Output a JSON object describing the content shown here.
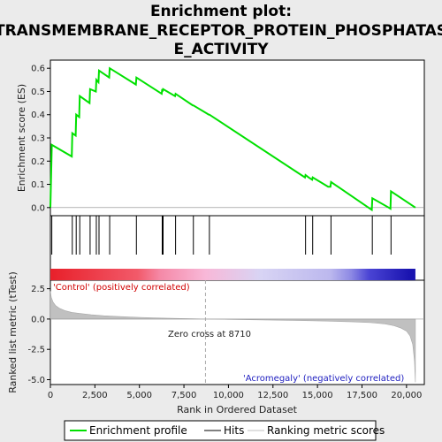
{
  "chart_data": {
    "type": "line",
    "title_lines": [
      "Enrichment plot:",
      "TRANSMEMBRANE_RECEPTOR_PROTEIN_PHOSPHATAS",
      "E_ACTIVITY"
    ],
    "es_ylabel": "Enrichment score (ES)",
    "metric_ylabel": "Ranked list metric (tTest)",
    "xlabel": "Rank in Ordered Dataset",
    "xlim": [
      0,
      21000
    ],
    "xticks": [
      0,
      2500,
      5000,
      7500,
      10000,
      12500,
      15000,
      17500,
      20000
    ],
    "xtick_labels": [
      "0",
      "2,500",
      "5,000",
      "7,500",
      "10,000",
      "12,500",
      "15,000",
      "17,500",
      "20,000"
    ],
    "es_ylim": [
      -0.035,
      0.635
    ],
    "es_yticks": [
      0.0,
      0.1,
      0.2,
      0.3,
      0.4,
      0.5,
      0.6
    ],
    "es_ytick_labels": [
      "0.0",
      "0.1",
      "0.2",
      "0.3",
      "0.4",
      "0.5",
      "0.6"
    ],
    "metric_ylim": [
      -5.4,
      3.2
    ],
    "metric_yticks": [
      2.5,
      0.0,
      -2.5,
      -5.0
    ],
    "metric_ytick_labels": [
      "2.5",
      "0.0",
      "-2.5",
      "-5.0"
    ],
    "enrichment_profile": {
      "name": "Enrichment profile",
      "color": "#00e000",
      "x": [
        0,
        80,
        1200,
        1230,
        1420,
        1450,
        1620,
        1650,
        2200,
        2230,
        2550,
        2580,
        2700,
        2730,
        3300,
        3330,
        4800,
        4830,
        6250,
        6280,
        6300,
        6330,
        7000,
        7030,
        8000,
        8030,
        8900,
        8930,
        14300,
        14330,
        14500,
        14700,
        14730,
        15600,
        15730,
        15760,
        18050,
        18080,
        19000,
        19100,
        19130,
        20500
      ],
      "y": [
        0.0,
        0.27,
        0.22,
        0.32,
        0.31,
        0.4,
        0.39,
        0.48,
        0.45,
        0.51,
        0.5,
        0.55,
        0.54,
        0.59,
        0.56,
        0.6,
        0.53,
        0.56,
        0.49,
        0.51,
        0.5,
        0.51,
        0.48,
        0.49,
        0.44,
        0.44,
        0.4,
        0.4,
        0.13,
        0.14,
        0.13,
        0.12,
        0.13,
        0.09,
        0.09,
        0.11,
        -0.01,
        0.04,
        0.0,
        -0.005,
        0.07,
        0.0
      ]
    },
    "hits": [
      80,
      1230,
      1450,
      1650,
      2230,
      2580,
      2730,
      3330,
      4830,
      6280,
      6330,
      7030,
      8030,
      8930,
      14330,
      14730,
      15760,
      18080,
      19130
    ],
    "ranking_metric": {
      "name": "Ranking metric scores",
      "color": "#c0c0c0",
      "x": [
        0,
        50,
        150,
        300,
        500,
        800,
        1200,
        1700,
        2300,
        3000,
        4000,
        5000,
        6000,
        7000,
        8000,
        8710,
        10000,
        12000,
        14000,
        15500,
        17000,
        18000,
        18800,
        19300,
        19700,
        20000,
        20200,
        20350,
        20450,
        20500
      ],
      "y": [
        2.3,
        1.8,
        1.4,
        1.1,
        0.9,
        0.7,
        0.55,
        0.45,
        0.35,
        0.27,
        0.2,
        0.14,
        0.09,
        0.05,
        0.02,
        0.0,
        -0.03,
        -0.07,
        -0.12,
        -0.17,
        -0.23,
        -0.3,
        -0.4,
        -0.55,
        -0.75,
        -1.0,
        -1.4,
        -2.1,
        -3.5,
        -5.2
      ]
    },
    "zero_cross_x": 8710,
    "zero_cross_label": "Zero cross at 8710",
    "pos_label": "'Control' (positively correlated)",
    "neg_label": "'Acromegaly' (negatively correlated)",
    "colorbar_stops": [
      {
        "x": 0,
        "color": "#e8202a"
      },
      {
        "x": 4900,
        "color": "#f25a6a"
      },
      {
        "x": 6200,
        "color": "#f58aa8"
      },
      {
        "x": 8710,
        "color": "#f8b8d8"
      },
      {
        "x": 11800,
        "color": "#d8d4f4"
      },
      {
        "x": 15700,
        "color": "#bcb8ee"
      },
      {
        "x": 16900,
        "color": "#8c88e4"
      },
      {
        "x": 17900,
        "color": "#4a44d4"
      },
      {
        "x": 20150,
        "color": "#1a14b0"
      },
      {
        "x": 20500,
        "color": "#1a14b0"
      }
    ],
    "legend": [
      {
        "label": "Enrichment profile",
        "color": "#00e000"
      },
      {
        "label": "Hits",
        "color": "#000000"
      },
      {
        "label": "Ranking metric scores",
        "color": "#c0c0c0"
      }
    ]
  }
}
